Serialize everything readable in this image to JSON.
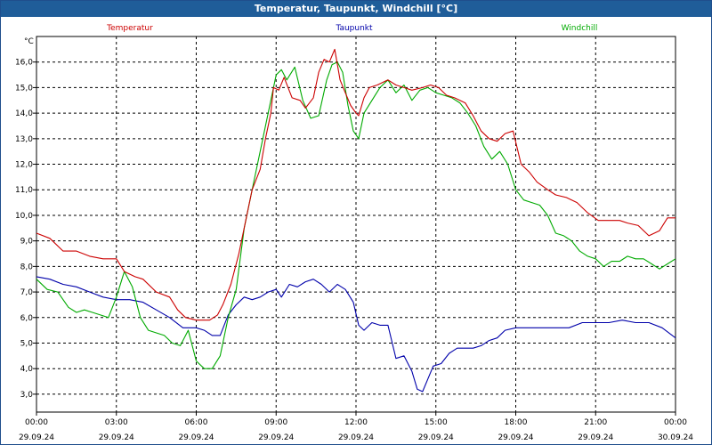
{
  "window": {
    "title": "Temperatur, Taupunkt, Windchill [°C]"
  },
  "chart_data": {
    "type": "line",
    "title": "Temperatur, Taupunkt, Windchill [°C]",
    "ylabel": "°C",
    "ylim": [
      2.3,
      17.0
    ],
    "xlim": [
      0,
      24
    ],
    "grid": true,
    "legend_position": "top",
    "y_ticks": [
      "3,0",
      "4,0",
      "5,0",
      "6,0",
      "7,0",
      "8,0",
      "9,0",
      "10,0",
      "11,0",
      "12,0",
      "13,0",
      "14,0",
      "15,0",
      "16,0"
    ],
    "x_ticks": [
      {
        "time": "00:00",
        "date": "29.09.24",
        "hour": 0
      },
      {
        "time": "03:00",
        "date": "29.09.24",
        "hour": 3
      },
      {
        "time": "06:00",
        "date": "29.09.24",
        "hour": 6
      },
      {
        "time": "09:00",
        "date": "29.09.24",
        "hour": 9
      },
      {
        "time": "12:00",
        "date": "29.09.24",
        "hour": 12
      },
      {
        "time": "15:00",
        "date": "29.09.24",
        "hour": 15
      },
      {
        "time": "18:00",
        "date": "29.09.24",
        "hour": 18
      },
      {
        "time": "21:00",
        "date": "29.09.24",
        "hour": 21
      },
      {
        "time": "00:00",
        "date": "30.09.24",
        "hour": 24
      }
    ],
    "series": [
      {
        "name": "Temperatur",
        "color": "#cc0000",
        "points": [
          [
            0,
            9.3
          ],
          [
            0.5,
            9.1
          ],
          [
            1,
            8.6
          ],
          [
            1.5,
            8.6
          ],
          [
            2,
            8.4
          ],
          [
            2.5,
            8.3
          ],
          [
            3,
            8.3
          ],
          [
            3.3,
            7.8
          ],
          [
            3.7,
            7.6
          ],
          [
            4,
            7.5
          ],
          [
            4.5,
            7.0
          ],
          [
            5,
            6.8
          ],
          [
            5.3,
            6.3
          ],
          [
            5.6,
            6.0
          ],
          [
            6,
            5.9
          ],
          [
            6.5,
            5.9
          ],
          [
            6.8,
            6.1
          ],
          [
            7,
            6.5
          ],
          [
            7.3,
            7.3
          ],
          [
            7.6,
            8.5
          ],
          [
            7.9,
            10.0
          ],
          [
            8.1,
            11.0
          ],
          [
            8.4,
            11.8
          ],
          [
            8.6,
            13.0
          ],
          [
            8.8,
            14.0
          ],
          [
            8.9,
            15.0
          ],
          [
            9.1,
            14.9
          ],
          [
            9.3,
            15.4
          ],
          [
            9.6,
            14.6
          ],
          [
            9.9,
            14.5
          ],
          [
            10.1,
            14.2
          ],
          [
            10.4,
            14.6
          ],
          [
            10.6,
            15.6
          ],
          [
            10.8,
            16.1
          ],
          [
            11.0,
            16.0
          ],
          [
            11.2,
            16.5
          ],
          [
            11.4,
            15.3
          ],
          [
            11.6,
            14.8
          ],
          [
            11.8,
            14.3
          ],
          [
            12,
            14.0
          ],
          [
            12.1,
            13.9
          ],
          [
            12.3,
            14.6
          ],
          [
            12.5,
            15.0
          ],
          [
            12.8,
            15.1
          ],
          [
            13.2,
            15.3
          ],
          [
            13.5,
            15.1
          ],
          [
            13.8,
            15.0
          ],
          [
            14.1,
            14.9
          ],
          [
            14.5,
            15.0
          ],
          [
            14.8,
            15.1
          ],
          [
            15.1,
            15.0
          ],
          [
            15.4,
            14.7
          ],
          [
            15.7,
            14.6
          ],
          [
            16.1,
            14.4
          ],
          [
            16.4,
            13.9
          ],
          [
            16.7,
            13.3
          ],
          [
            17,
            13.0
          ],
          [
            17.3,
            12.9
          ],
          [
            17.6,
            13.2
          ],
          [
            17.9,
            13.3
          ],
          [
            18.2,
            12.0
          ],
          [
            18.5,
            11.7
          ],
          [
            18.8,
            11.3
          ],
          [
            19.2,
            11.0
          ],
          [
            19.5,
            10.8
          ],
          [
            19.9,
            10.7
          ],
          [
            20.3,
            10.5
          ],
          [
            20.7,
            10.1
          ],
          [
            21.1,
            9.8
          ],
          [
            21.5,
            9.8
          ],
          [
            21.9,
            9.8
          ],
          [
            22.2,
            9.7
          ],
          [
            22.6,
            9.6
          ],
          [
            23.0,
            9.2
          ],
          [
            23.4,
            9.4
          ],
          [
            23.7,
            9.9
          ],
          [
            24,
            9.9
          ]
        ]
      },
      {
        "name": "Taupunkt",
        "color": "#0000aa",
        "points": [
          [
            0,
            7.6
          ],
          [
            0.5,
            7.5
          ],
          [
            1,
            7.3
          ],
          [
            1.5,
            7.2
          ],
          [
            2,
            7.0
          ],
          [
            2.5,
            6.8
          ],
          [
            3,
            6.7
          ],
          [
            3.5,
            6.7
          ],
          [
            4,
            6.6
          ],
          [
            4.5,
            6.3
          ],
          [
            5,
            6.0
          ],
          [
            5.5,
            5.6
          ],
          [
            6,
            5.6
          ],
          [
            6.3,
            5.5
          ],
          [
            6.6,
            5.3
          ],
          [
            6.9,
            5.3
          ],
          [
            7.2,
            6.1
          ],
          [
            7.5,
            6.5
          ],
          [
            7.8,
            6.8
          ],
          [
            8.1,
            6.7
          ],
          [
            8.4,
            6.8
          ],
          [
            8.7,
            7.0
          ],
          [
            9,
            7.1
          ],
          [
            9.2,
            6.8
          ],
          [
            9.5,
            7.3
          ],
          [
            9.8,
            7.2
          ],
          [
            10.1,
            7.4
          ],
          [
            10.4,
            7.5
          ],
          [
            10.7,
            7.3
          ],
          [
            11,
            7.0
          ],
          [
            11.3,
            7.3
          ],
          [
            11.6,
            7.1
          ],
          [
            11.9,
            6.6
          ],
          [
            12.1,
            5.7
          ],
          [
            12.3,
            5.5
          ],
          [
            12.6,
            5.8
          ],
          [
            12.9,
            5.7
          ],
          [
            13.2,
            5.7
          ],
          [
            13.5,
            4.4
          ],
          [
            13.8,
            4.5
          ],
          [
            14.1,
            3.9
          ],
          [
            14.3,
            3.2
          ],
          [
            14.5,
            3.1
          ],
          [
            14.7,
            3.6
          ],
          [
            14.9,
            4.1
          ],
          [
            15.2,
            4.2
          ],
          [
            15.5,
            4.6
          ],
          [
            15.8,
            4.8
          ],
          [
            16.1,
            4.8
          ],
          [
            16.4,
            4.8
          ],
          [
            16.7,
            4.9
          ],
          [
            17,
            5.1
          ],
          [
            17.3,
            5.2
          ],
          [
            17.6,
            5.5
          ],
          [
            18,
            5.6
          ],
          [
            18.4,
            5.6
          ],
          [
            18.8,
            5.6
          ],
          [
            19.2,
            5.6
          ],
          [
            19.6,
            5.6
          ],
          [
            20,
            5.6
          ],
          [
            20.5,
            5.8
          ],
          [
            21,
            5.8
          ],
          [
            21.5,
            5.8
          ],
          [
            22,
            5.9
          ],
          [
            22.5,
            5.8
          ],
          [
            23,
            5.8
          ],
          [
            23.5,
            5.6
          ],
          [
            24,
            5.2
          ]
        ]
      },
      {
        "name": "Windchill",
        "color": "#00aa00",
        "points": [
          [
            0,
            7.5
          ],
          [
            0.4,
            7.1
          ],
          [
            0.8,
            7.0
          ],
          [
            1.2,
            6.4
          ],
          [
            1.5,
            6.2
          ],
          [
            1.8,
            6.3
          ],
          [
            2.1,
            6.2
          ],
          [
            2.4,
            6.1
          ],
          [
            2.7,
            6.0
          ],
          [
            3,
            6.8
          ],
          [
            3.3,
            7.8
          ],
          [
            3.6,
            7.2
          ],
          [
            3.9,
            6.0
          ],
          [
            4.2,
            5.5
          ],
          [
            4.5,
            5.4
          ],
          [
            4.8,
            5.3
          ],
          [
            5.1,
            5.0
          ],
          [
            5.4,
            4.9
          ],
          [
            5.7,
            5.5
          ],
          [
            6.0,
            4.3
          ],
          [
            6.3,
            4.0
          ],
          [
            6.6,
            4.0
          ],
          [
            6.9,
            4.5
          ],
          [
            7.2,
            6.0
          ],
          [
            7.5,
            7.1
          ],
          [
            7.8,
            9.5
          ],
          [
            8.1,
            11.0
          ],
          [
            8.4,
            12.5
          ],
          [
            8.7,
            14.0
          ],
          [
            9.0,
            15.5
          ],
          [
            9.2,
            15.7
          ],
          [
            9.4,
            15.3
          ],
          [
            9.7,
            15.8
          ],
          [
            10.0,
            14.5
          ],
          [
            10.3,
            13.8
          ],
          [
            10.6,
            13.9
          ],
          [
            10.9,
            15.3
          ],
          [
            11.1,
            15.9
          ],
          [
            11.3,
            16.0
          ],
          [
            11.5,
            15.6
          ],
          [
            11.7,
            14.3
          ],
          [
            11.9,
            13.3
          ],
          [
            12.1,
            13.0
          ],
          [
            12.3,
            14.0
          ],
          [
            12.6,
            14.5
          ],
          [
            12.9,
            15.0
          ],
          [
            13.2,
            15.3
          ],
          [
            13.5,
            14.8
          ],
          [
            13.8,
            15.1
          ],
          [
            14.1,
            14.5
          ],
          [
            14.4,
            14.9
          ],
          [
            14.7,
            15.0
          ],
          [
            15,
            14.8
          ],
          [
            15.3,
            14.7
          ],
          [
            15.6,
            14.6
          ],
          [
            15.9,
            14.4
          ],
          [
            16.2,
            14.0
          ],
          [
            16.5,
            13.5
          ],
          [
            16.8,
            12.7
          ],
          [
            17.1,
            12.2
          ],
          [
            17.4,
            12.5
          ],
          [
            17.7,
            12.0
          ],
          [
            18.0,
            11.0
          ],
          [
            18.3,
            10.6
          ],
          [
            18.6,
            10.5
          ],
          [
            18.9,
            10.4
          ],
          [
            19.2,
            10.0
          ],
          [
            19.5,
            9.3
          ],
          [
            19.8,
            9.2
          ],
          [
            20.1,
            9.0
          ],
          [
            20.4,
            8.6
          ],
          [
            20.7,
            8.4
          ],
          [
            21.0,
            8.3
          ],
          [
            21.3,
            8.0
          ],
          [
            21.6,
            8.2
          ],
          [
            21.9,
            8.2
          ],
          [
            22.2,
            8.4
          ],
          [
            22.5,
            8.3
          ],
          [
            22.8,
            8.3
          ],
          [
            23.1,
            8.1
          ],
          [
            23.4,
            7.9
          ],
          [
            23.7,
            8.1
          ],
          [
            24,
            8.3
          ]
        ]
      }
    ]
  }
}
